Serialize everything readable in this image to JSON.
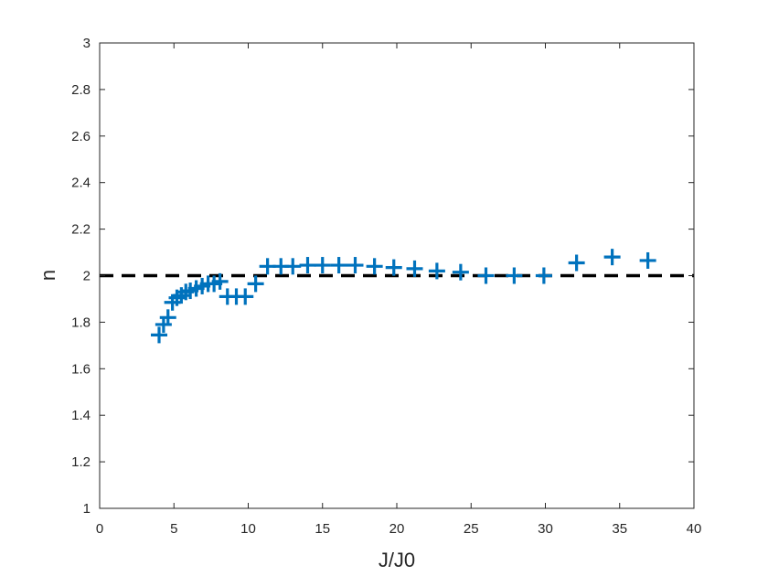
{
  "chart_data": {
    "type": "scatter",
    "title": "",
    "xlabel": "J/J0",
    "ylabel": "n",
    "xlim": [
      0,
      40
    ],
    "ylim": [
      1,
      3
    ],
    "xticks": [
      0,
      5,
      10,
      15,
      20,
      25,
      30,
      35,
      40
    ],
    "yticks": [
      1,
      1.2,
      1.4,
      1.6,
      1.8,
      2,
      2.2,
      2.4,
      2.6,
      2.8,
      3
    ],
    "xtick_labels": [
      "0",
      "5",
      "10",
      "15",
      "20",
      "25",
      "30",
      "35",
      "40"
    ],
    "ytick_labels": [
      "1",
      "1.2",
      "1.4",
      "1.6",
      "1.8",
      "2",
      "2.2",
      "2.4",
      "2.6",
      "2.8",
      "3"
    ],
    "grid": false,
    "marker": "+",
    "marker_color": "#0072BD",
    "series": [
      {
        "x": [
          4.0,
          4.3,
          4.6,
          4.9,
          5.2,
          5.5,
          5.8,
          6.1,
          6.5,
          6.9,
          7.3,
          7.7,
          8.1,
          8.6,
          9.2,
          9.8,
          10.5,
          11.3,
          12.2,
          13.0,
          14.0,
          15.0,
          16.1,
          17.2,
          18.5,
          19.8,
          21.2,
          22.7,
          24.3,
          26.0,
          27.9,
          29.9,
          32.1,
          34.5,
          36.9
        ],
        "y": [
          1.745,
          1.79,
          1.82,
          1.885,
          1.905,
          1.915,
          1.93,
          1.935,
          1.945,
          1.955,
          1.965,
          1.965,
          1.975,
          1.91,
          1.91,
          1.91,
          1.965,
          2.04,
          2.04,
          2.04,
          2.045,
          2.045,
          2.045,
          2.045,
          2.04,
          2.035,
          2.03,
          2.02,
          2.015,
          2.0,
          2.0,
          2.0,
          2.055,
          2.08,
          2.065
        ]
      }
    ],
    "reference_line": {
      "y": 2,
      "style": "dashed",
      "color": "#000000"
    }
  }
}
